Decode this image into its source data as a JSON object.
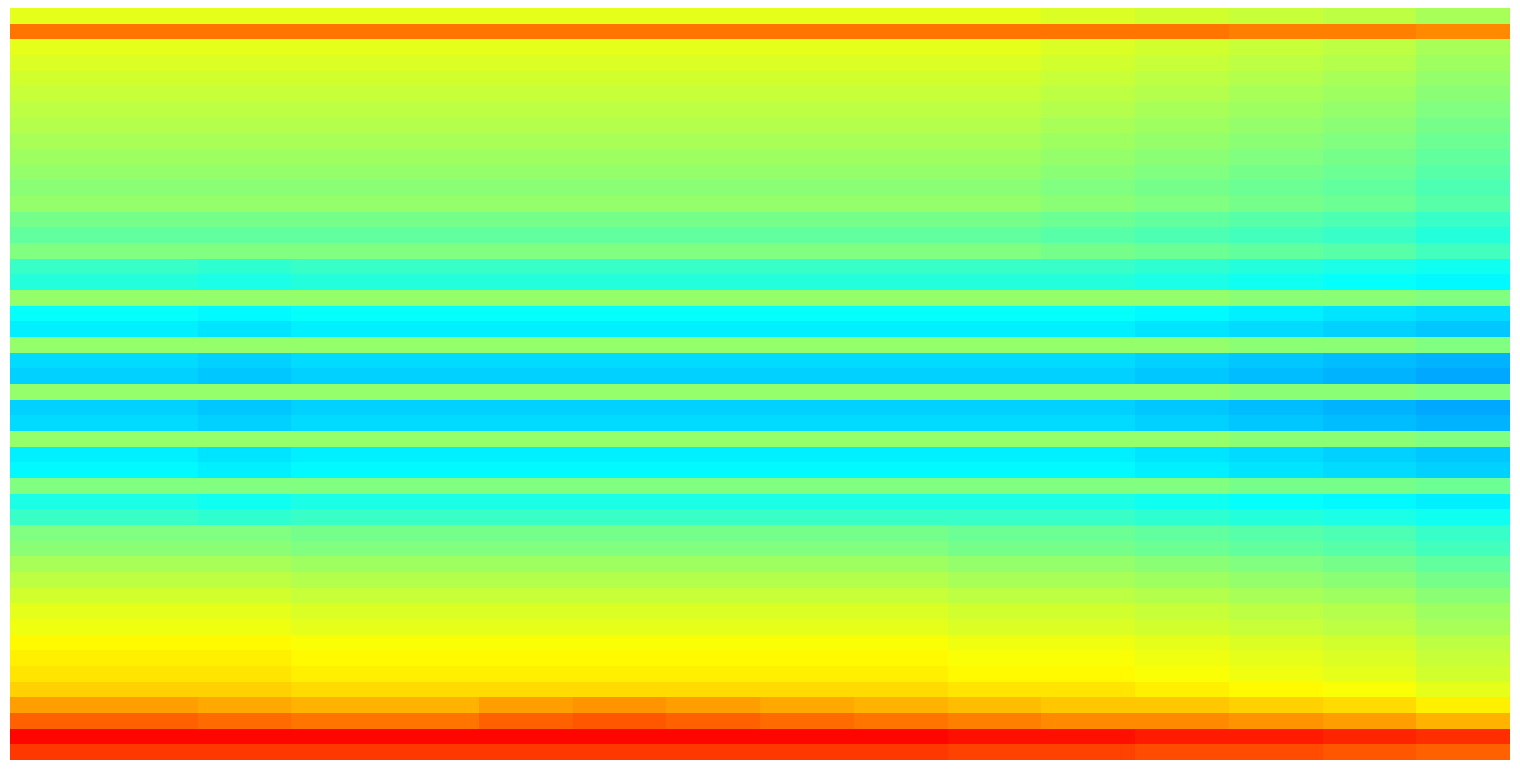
{
  "chart_data": {
    "type": "heatmap",
    "color": "jet",
    "tick_labels": false,
    "color_range": [
      0,
      100
    ],
    "cells": [
      [
        60,
        60,
        60,
        60,
        60,
        60,
        60,
        60,
        60,
        60,
        60,
        59,
        58,
        57,
        56,
        54
      ],
      [
        76,
        76,
        76,
        76,
        76,
        76,
        76,
        76,
        76,
        76,
        76,
        76,
        76,
        75,
        75,
        74
      ],
      [
        60,
        60,
        60,
        60,
        60,
        60,
        60,
        60,
        60,
        60,
        60,
        59,
        58,
        57,
        56,
        54
      ],
      [
        59,
        59,
        59,
        59,
        59,
        59,
        59,
        59,
        59,
        59,
        59,
        58,
        57,
        56,
        55,
        53
      ],
      [
        58,
        58,
        58,
        58,
        58,
        58,
        58,
        58,
        58,
        58,
        58,
        57,
        56,
        55,
        54,
        52
      ],
      [
        57,
        57,
        57,
        57,
        57,
        57,
        57,
        57,
        57,
        57,
        57,
        56,
        55,
        54,
        53,
        51
      ],
      [
        56,
        56,
        56,
        56,
        56,
        56,
        56,
        56,
        56,
        56,
        56,
        55,
        54,
        53,
        52,
        50
      ],
      [
        55,
        55,
        55,
        55,
        55,
        55,
        55,
        55,
        55,
        55,
        55,
        54,
        53,
        52,
        51,
        49
      ],
      [
        54,
        54,
        54,
        54,
        54,
        54,
        54,
        54,
        54,
        54,
        54,
        53,
        52,
        51,
        50,
        48
      ],
      [
        53,
        53,
        53,
        53,
        53,
        53,
        53,
        53,
        53,
        53,
        53,
        52,
        51,
        50,
        49,
        47
      ],
      [
        52,
        52,
        52,
        52,
        52,
        52,
        52,
        52,
        52,
        52,
        52,
        51,
        50,
        49,
        48,
        46
      ],
      [
        51,
        51,
        51,
        51,
        51,
        51,
        51,
        51,
        51,
        51,
        51,
        50,
        49,
        48,
        47,
        45
      ],
      [
        52,
        52,
        52,
        52,
        52,
        52,
        52,
        52,
        52,
        52,
        52,
        51,
        50,
        49,
        48,
        46
      ],
      [
        49,
        49,
        49,
        49,
        49,
        49,
        49,
        49,
        49,
        49,
        49,
        48,
        47,
        46,
        45,
        43
      ],
      [
        47,
        47,
        47,
        47,
        47,
        47,
        47,
        47,
        47,
        47,
        47,
        46,
        45,
        44,
        43,
        41
      ],
      [
        50,
        50,
        50,
        50,
        50,
        50,
        50,
        50,
        50,
        50,
        50,
        49,
        48,
        47,
        46,
        44
      ],
      [
        43,
        43,
        42,
        43,
        43,
        43,
        43,
        43,
        43,
        43,
        43,
        43,
        42,
        41,
        40,
        39
      ],
      [
        41,
        41,
        40,
        41,
        41,
        41,
        41,
        41,
        41,
        41,
        41,
        41,
        40,
        39,
        38,
        37
      ],
      [
        52,
        52,
        52,
        52,
        52,
        52,
        52,
        52,
        52,
        52,
        52,
        52,
        52,
        51,
        51,
        50
      ],
      [
        38,
        38,
        37,
        38,
        38,
        38,
        38,
        38,
        38,
        38,
        38,
        38,
        37,
        36,
        35,
        34
      ],
      [
        36,
        36,
        35,
        36,
        36,
        36,
        36,
        36,
        36,
        36,
        36,
        36,
        35,
        34,
        33,
        32
      ],
      [
        52,
        52,
        52,
        52,
        52,
        52,
        52,
        52,
        52,
        52,
        52,
        52,
        52,
        51,
        51,
        50
      ],
      [
        34,
        34,
        33,
        34,
        34,
        34,
        34,
        34,
        34,
        34,
        34,
        34,
        33,
        32,
        31,
        30
      ],
      [
        33,
        33,
        32,
        33,
        33,
        33,
        33,
        33,
        33,
        33,
        33,
        33,
        32,
        31,
        30,
        29
      ],
      [
        52,
        52,
        52,
        52,
        52,
        52,
        52,
        52,
        52,
        52,
        52,
        52,
        52,
        51,
        51,
        50
      ],
      [
        33,
        33,
        32,
        33,
        33,
        33,
        33,
        33,
        33,
        33,
        33,
        33,
        32,
        31,
        30,
        29
      ],
      [
        34,
        34,
        33,
        34,
        34,
        34,
        34,
        34,
        34,
        34,
        34,
        34,
        33,
        32,
        31,
        30
      ],
      [
        52,
        52,
        52,
        52,
        52,
        52,
        52,
        52,
        52,
        52,
        52,
        52,
        52,
        51,
        51,
        50
      ],
      [
        36,
        36,
        35,
        36,
        36,
        36,
        36,
        36,
        36,
        36,
        36,
        36,
        35,
        34,
        33,
        32
      ],
      [
        37,
        37,
        36,
        37,
        37,
        37,
        37,
        37,
        37,
        37,
        37,
        37,
        36,
        35,
        34,
        33
      ],
      [
        50,
        50,
        50,
        50,
        50,
        50,
        50,
        50,
        50,
        50,
        50,
        50,
        50,
        49,
        49,
        48
      ],
      [
        40,
        40,
        39,
        40,
        40,
        40,
        40,
        40,
        40,
        40,
        40,
        40,
        39,
        38,
        37,
        36
      ],
      [
        43,
        43,
        42,
        43,
        43,
        43,
        43,
        43,
        43,
        43,
        43,
        43,
        42,
        41,
        40,
        39
      ],
      [
        50,
        50,
        50,
        49,
        49,
        49,
        49,
        49,
        49,
        49,
        48,
        48,
        47,
        46,
        45,
        43
      ],
      [
        51,
        51,
        51,
        50,
        50,
        50,
        50,
        50,
        50,
        50,
        49,
        49,
        48,
        47,
        46,
        44
      ],
      [
        54,
        54,
        54,
        53,
        53,
        53,
        53,
        53,
        53,
        53,
        52,
        52,
        51,
        50,
        49,
        47
      ],
      [
        56,
        56,
        56,
        55,
        55,
        55,
        55,
        55,
        55,
        55,
        54,
        54,
        53,
        52,
        51,
        49
      ],
      [
        58,
        58,
        58,
        57,
        57,
        57,
        57,
        57,
        57,
        57,
        56,
        56,
        55,
        54,
        53,
        51
      ],
      [
        60,
        60,
        60,
        59,
        59,
        59,
        59,
        59,
        59,
        59,
        58,
        58,
        57,
        56,
        55,
        53
      ],
      [
        61,
        61,
        61,
        60,
        60,
        60,
        60,
        60,
        60,
        60,
        59,
        59,
        58,
        57,
        56,
        54
      ],
      [
        63,
        63,
        63,
        62,
        62,
        62,
        62,
        62,
        62,
        62,
        61,
        61,
        60,
        59,
        58,
        56
      ],
      [
        64,
        64,
        64,
        63,
        63,
        63,
        63,
        63,
        63,
        63,
        62,
        62,
        61,
        60,
        59,
        57
      ],
      [
        65,
        65,
        65,
        64,
        64,
        64,
        64,
        64,
        64,
        64,
        63,
        63,
        62,
        61,
        60,
        58
      ],
      [
        67,
        67,
        67,
        66,
        66,
        66,
        66,
        66,
        66,
        66,
        65,
        65,
        64,
        63,
        62,
        60
      ],
      [
        72,
        72,
        71,
        70,
        70,
        72,
        73,
        72,
        71,
        70,
        69,
        68,
        68,
        67,
        66,
        64
      ],
      [
        78,
        78,
        77,
        76,
        76,
        78,
        79,
        78,
        77,
        76,
        75,
        74,
        74,
        73,
        72,
        70
      ],
      [
        87,
        87,
        87,
        87,
        87,
        87,
        87,
        87,
        87,
        87,
        86,
        86,
        85,
        85,
        84,
        83
      ],
      [
        82,
        82,
        82,
        82,
        82,
        82,
        82,
        82,
        82,
        82,
        81,
        81,
        80,
        80,
        79,
        78
      ]
    ]
  }
}
